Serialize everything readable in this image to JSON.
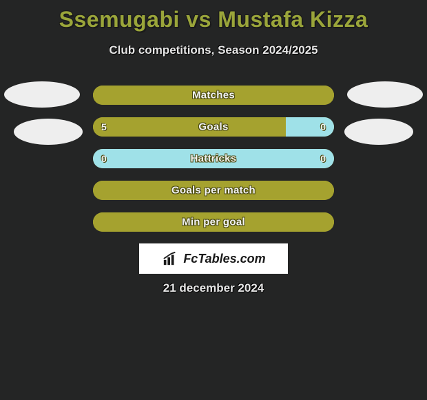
{
  "title": "Ssemugabi vs Mustafa Kizza",
  "subtitle": "Club competitions, Season 2024/2025",
  "date": "21 december 2024",
  "logo_text": "FcTables.com",
  "colors": {
    "background": "#242525",
    "accent": "#9aa53a",
    "bar_base": "#a5a22f",
    "bar_alt": "#9fe1e8",
    "avatar": "#eeeeee",
    "title_fontsize": 32,
    "subtitle_fontsize": 17,
    "label_fontsize": 15
  },
  "avatars": {
    "left_count": 2,
    "right_count": 2
  },
  "bars": [
    {
      "label": "Matches",
      "left_value": "",
      "right_value": "",
      "left_pct": 50,
      "right_pct": 50,
      "left_color": "#a5a22f",
      "right_color": "#a5a22f"
    },
    {
      "label": "Goals",
      "left_value": "5",
      "right_value": "0",
      "left_pct": 75,
      "right_pct": 20,
      "left_color": "#a5a22f",
      "right_color": "#9fe1e8"
    },
    {
      "label": "Hattricks",
      "left_value": "0",
      "right_value": "0",
      "left_pct": 50,
      "right_pct": 50,
      "left_color": "#9fe1e8",
      "right_color": "#9fe1e8"
    },
    {
      "label": "Goals per match",
      "left_value": "",
      "right_value": "",
      "left_pct": 50,
      "right_pct": 50,
      "left_color": "#a5a22f",
      "right_color": "#a5a22f"
    },
    {
      "label": "Min per goal",
      "left_value": "",
      "right_value": "",
      "left_pct": 50,
      "right_pct": 50,
      "left_color": "#a5a22f",
      "right_color": "#a5a22f"
    }
  ]
}
